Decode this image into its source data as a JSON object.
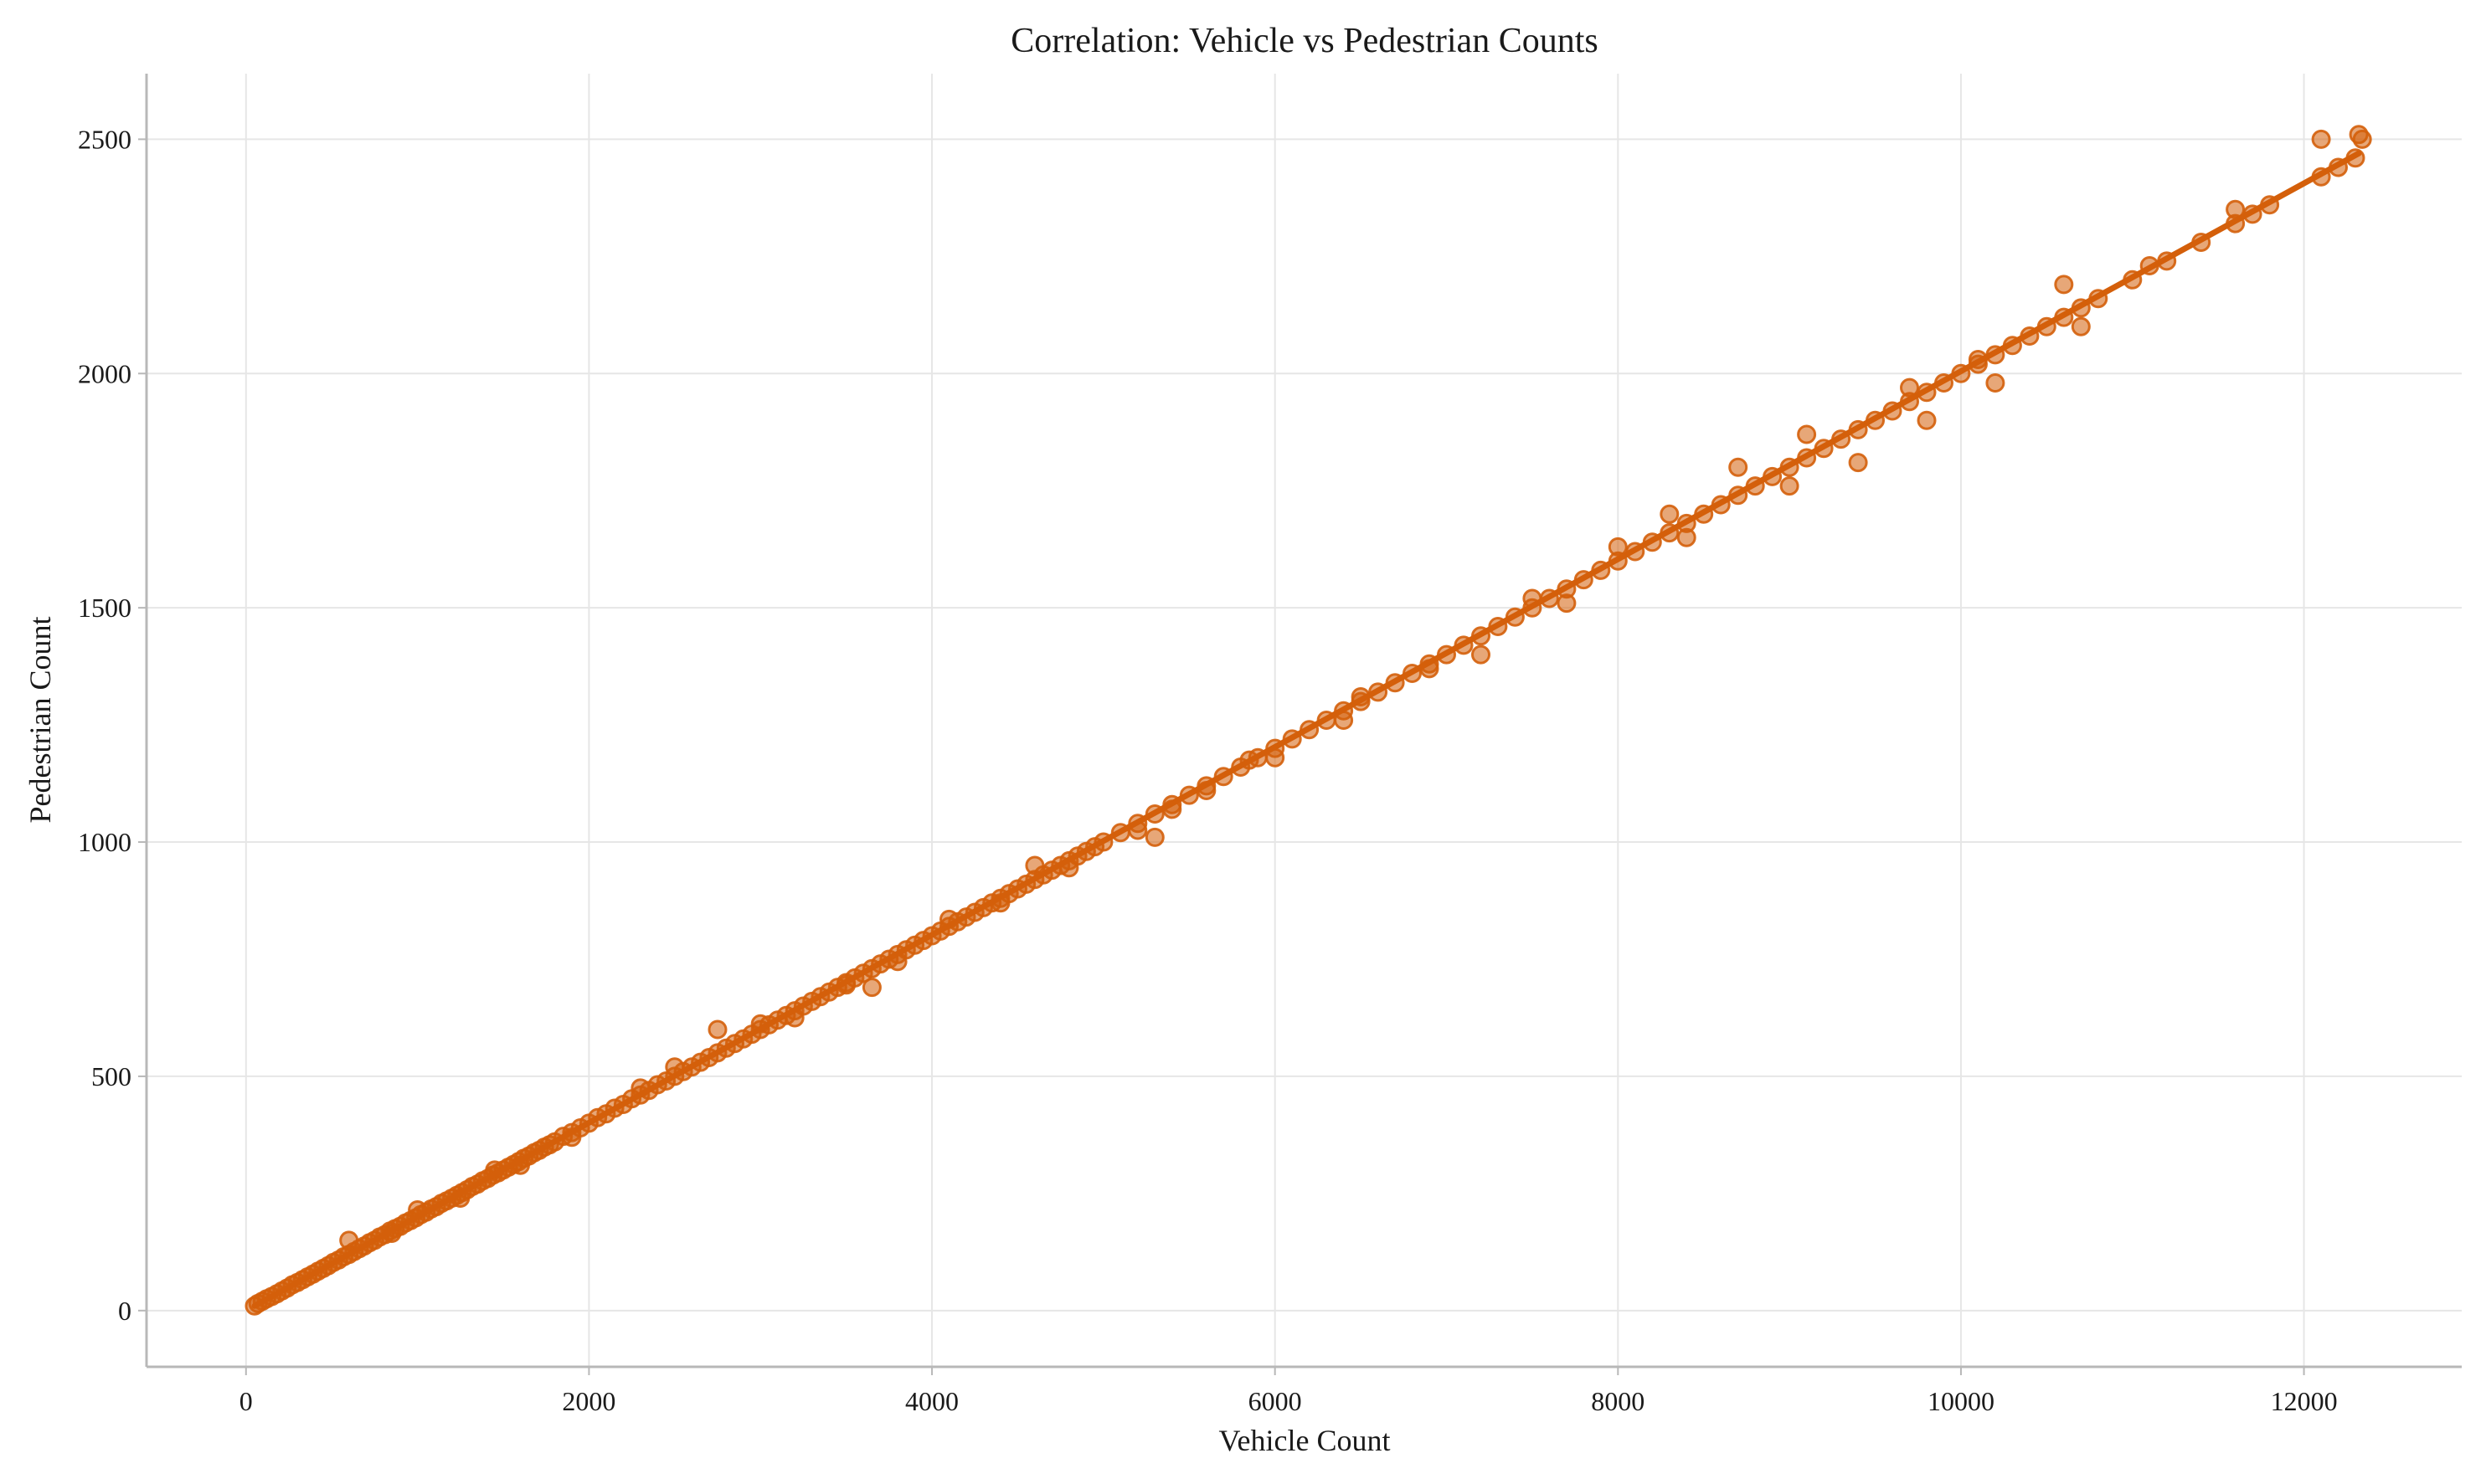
{
  "colors": {
    "points": "#d45f0a",
    "trend": "#d45f0a",
    "grid": "#e6e6e6",
    "spine": "#b8b8b8"
  },
  "chart_data": {
    "type": "scatter",
    "title": "Correlation: Vehicle vs Pedestrian Counts",
    "xlabel": "Vehicle Count",
    "ylabel": "Pedestrian Count",
    "xlim": [
      -580,
      12920
    ],
    "ylim": [
      -120,
      2640
    ],
    "xticks": [
      0,
      2000,
      4000,
      6000,
      8000,
      10000,
      12000
    ],
    "yticks": [
      0,
      500,
      1000,
      1500,
      2000,
      2500
    ],
    "grid": true,
    "legend": "none",
    "series": [
      {
        "points": [
          [
            50,
            10
          ],
          [
            70,
            15
          ],
          [
            95,
            20
          ],
          [
            120,
            25
          ],
          [
            150,
            30
          ],
          [
            180,
            36
          ],
          [
            210,
            42
          ],
          [
            240,
            48
          ],
          [
            270,
            55
          ],
          [
            300,
            60
          ],
          [
            330,
            66
          ],
          [
            360,
            72
          ],
          [
            390,
            78
          ],
          [
            420,
            84
          ],
          [
            450,
            90
          ],
          [
            480,
            96
          ],
          [
            510,
            103
          ],
          [
            540,
            108
          ],
          [
            570,
            115
          ],
          [
            600,
            120
          ],
          [
            630,
            126
          ],
          [
            660,
            132
          ],
          [
            690,
            138
          ],
          [
            720,
            145
          ],
          [
            750,
            150
          ],
          [
            780,
            157
          ],
          [
            810,
            162
          ],
          [
            840,
            170
          ],
          [
            870,
            175
          ],
          [
            900,
            180
          ],
          [
            930,
            187
          ],
          [
            960,
            192
          ],
          [
            990,
            198
          ],
          [
            1020,
            205
          ],
          [
            1050,
            210
          ],
          [
            1080,
            217
          ],
          [
            1110,
            222
          ],
          [
            1140,
            229
          ],
          [
            1170,
            234
          ],
          [
            1200,
            240
          ],
          [
            1230,
            246
          ],
          [
            1260,
            252
          ],
          [
            1290,
            258
          ],
          [
            1320,
            265
          ],
          [
            1350,
            270
          ],
          [
            1380,
            277
          ],
          [
            1410,
            282
          ],
          [
            1440,
            289
          ],
          [
            1470,
            294
          ],
          [
            1500,
            300
          ],
          [
            1530,
            306
          ],
          [
            1560,
            312
          ],
          [
            1590,
            318
          ],
          [
            1620,
            325
          ],
          [
            1650,
            330
          ],
          [
            1680,
            337
          ],
          [
            1710,
            342
          ],
          [
            1740,
            349
          ],
          [
            1770,
            354
          ],
          [
            1800,
            360
          ],
          [
            1850,
            372
          ],
          [
            1900,
            380
          ],
          [
            1950,
            390
          ],
          [
            2000,
            400
          ],
          [
            2050,
            412
          ],
          [
            2100,
            420
          ],
          [
            2150,
            432
          ],
          [
            2200,
            440
          ],
          [
            2250,
            452
          ],
          [
            2300,
            460
          ],
          [
            2350,
            470
          ],
          [
            2400,
            482
          ],
          [
            2450,
            490
          ],
          [
            2500,
            500
          ],
          [
            2550,
            510
          ],
          [
            2600,
            520
          ],
          [
            2650,
            530
          ],
          [
            2700,
            540
          ],
          [
            2750,
            550
          ],
          [
            2800,
            560
          ],
          [
            2850,
            570
          ],
          [
            2900,
            580
          ],
          [
            2950,
            590
          ],
          [
            3000,
            600
          ],
          [
            3050,
            610
          ],
          [
            3100,
            620
          ],
          [
            3150,
            630
          ],
          [
            3200,
            640
          ],
          [
            3250,
            650
          ],
          [
            3300,
            660
          ],
          [
            3350,
            670
          ],
          [
            3400,
            680
          ],
          [
            3450,
            690
          ],
          [
            3500,
            700
          ],
          [
            3550,
            710
          ],
          [
            3600,
            720
          ],
          [
            3650,
            730
          ],
          [
            3700,
            740
          ],
          [
            3750,
            750
          ],
          [
            3800,
            760
          ],
          [
            3850,
            770
          ],
          [
            3900,
            780
          ],
          [
            3950,
            790
          ],
          [
            4000,
            800
          ],
          [
            4050,
            810
          ],
          [
            4100,
            820
          ],
          [
            4150,
            830
          ],
          [
            4200,
            840
          ],
          [
            4250,
            850
          ],
          [
            4300,
            860
          ],
          [
            4350,
            870
          ],
          [
            4400,
            880
          ],
          [
            4450,
            890
          ],
          [
            4500,
            900
          ],
          [
            4550,
            910
          ],
          [
            4600,
            920
          ],
          [
            4650,
            930
          ],
          [
            4700,
            940
          ],
          [
            4750,
            950
          ],
          [
            4800,
            960
          ],
          [
            4850,
            970
          ],
          [
            4900,
            980
          ],
          [
            4950,
            990
          ],
          [
            5000,
            1000
          ],
          [
            5100,
            1020
          ],
          [
            5200,
            1040
          ],
          [
            5300,
            1060
          ],
          [
            5400,
            1080
          ],
          [
            5500,
            1100
          ],
          [
            5600,
            1120
          ],
          [
            5700,
            1140
          ],
          [
            5800,
            1160
          ],
          [
            5900,
            1180
          ],
          [
            6000,
            1200
          ],
          [
            6100,
            1220
          ],
          [
            6200,
            1240
          ],
          [
            6300,
            1260
          ],
          [
            6400,
            1280
          ],
          [
            6500,
            1300
          ],
          [
            6600,
            1320
          ],
          [
            6700,
            1340
          ],
          [
            6800,
            1360
          ],
          [
            6900,
            1380
          ],
          [
            7000,
            1400
          ],
          [
            7100,
            1420
          ],
          [
            7200,
            1440
          ],
          [
            7300,
            1460
          ],
          [
            7400,
            1480
          ],
          [
            7500,
            1500
          ],
          [
            7600,
            1520
          ],
          [
            7700,
            1540
          ],
          [
            7800,
            1560
          ],
          [
            7900,
            1580
          ],
          [
            8000,
            1600
          ],
          [
            8100,
            1620
          ],
          [
            8200,
            1640
          ],
          [
            8300,
            1660
          ],
          [
            8400,
            1680
          ],
          [
            8500,
            1700
          ],
          [
            8600,
            1720
          ],
          [
            8700,
            1740
          ],
          [
            8800,
            1760
          ],
          [
            8900,
            1780
          ],
          [
            9000,
            1800
          ],
          [
            9100,
            1820
          ],
          [
            9200,
            1840
          ],
          [
            9300,
            1860
          ],
          [
            9400,
            1880
          ],
          [
            9500,
            1900
          ],
          [
            9600,
            1920
          ],
          [
            9700,
            1940
          ],
          [
            9800,
            1960
          ],
          [
            9900,
            1980
          ],
          [
            10000,
            2000
          ],
          [
            10100,
            2020
          ],
          [
            10200,
            2040
          ],
          [
            10300,
            2060
          ],
          [
            10400,
            2080
          ],
          [
            10500,
            2100
          ],
          [
            10600,
            2120
          ],
          [
            10700,
            2140
          ],
          [
            10800,
            2160
          ],
          [
            11000,
            2200
          ],
          [
            11200,
            2240
          ],
          [
            11400,
            2280
          ],
          [
            11600,
            2320
          ],
          [
            11800,
            2360
          ],
          [
            12100,
            2420
          ],
          [
            12200,
            2440
          ],
          [
            12300,
            2460
          ],
          [
            12320,
            2510
          ],
          [
            12340,
            2500
          ],
          [
            1000,
            215
          ],
          [
            1600,
            310
          ],
          [
            2500,
            520
          ],
          [
            3000,
            612
          ],
          [
            3500,
            695
          ],
          [
            4400,
            870
          ],
          [
            5200,
            1025
          ],
          [
            5600,
            1110
          ],
          [
            6000,
            1180
          ],
          [
            6400,
            1260
          ],
          [
            6900,
            1370
          ],
          [
            7200,
            1400
          ],
          [
            7700,
            1510
          ],
          [
            8000,
            1630
          ],
          [
            8400,
            1650
          ],
          [
            8700,
            1800
          ],
          [
            9100,
            1870
          ],
          [
            9400,
            1810
          ],
          [
            9700,
            1970
          ],
          [
            10100,
            2030
          ],
          [
            10600,
            2190
          ],
          [
            11100,
            2230
          ],
          [
            11600,
            2350
          ],
          [
            12100,
            2500
          ],
          [
            2750,
            600
          ],
          [
            3650,
            690
          ],
          [
            4600,
            950
          ],
          [
            5300,
            1010
          ],
          [
            6500,
            1310
          ],
          [
            7500,
            1520
          ],
          [
            8300,
            1700
          ],
          [
            9000,
            1760
          ],
          [
            9800,
            1900
          ],
          [
            10200,
            1980
          ],
          [
            10700,
            2100
          ],
          [
            11700,
            2340
          ],
          [
            600,
            150
          ],
          [
            850,
            165
          ],
          [
            1250,
            240
          ],
          [
            1450,
            300
          ],
          [
            1900,
            370
          ],
          [
            2300,
            475
          ],
          [
            3200,
            625
          ],
          [
            3800,
            745
          ],
          [
            4100,
            835
          ],
          [
            4800,
            945
          ],
          [
            5400,
            1070
          ],
          [
            5850,
            1175
          ]
        ]
      }
    ],
    "trendline": [
      [
        50,
        10
      ],
      [
        12320,
        2470
      ]
    ]
  }
}
